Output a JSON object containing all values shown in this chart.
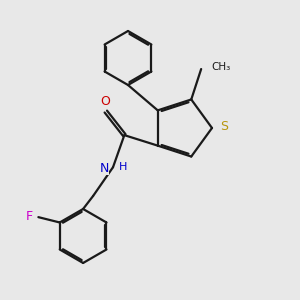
{
  "bg_color": "#e8e8e8",
  "bond_color": "#1a1a1a",
  "bond_width": 1.6,
  "dbo": 0.018,
  "atom_colors": {
    "S": "#b8960c",
    "N": "#0000cc",
    "O": "#cc0000",
    "F": "#cc00cc",
    "H_n": "#0000cc"
  },
  "fig_size": [
    3.0,
    3.0
  ],
  "dpi": 100,
  "xlim": [
    0.0,
    3.0
  ],
  "ylim": [
    0.0,
    3.0
  ]
}
